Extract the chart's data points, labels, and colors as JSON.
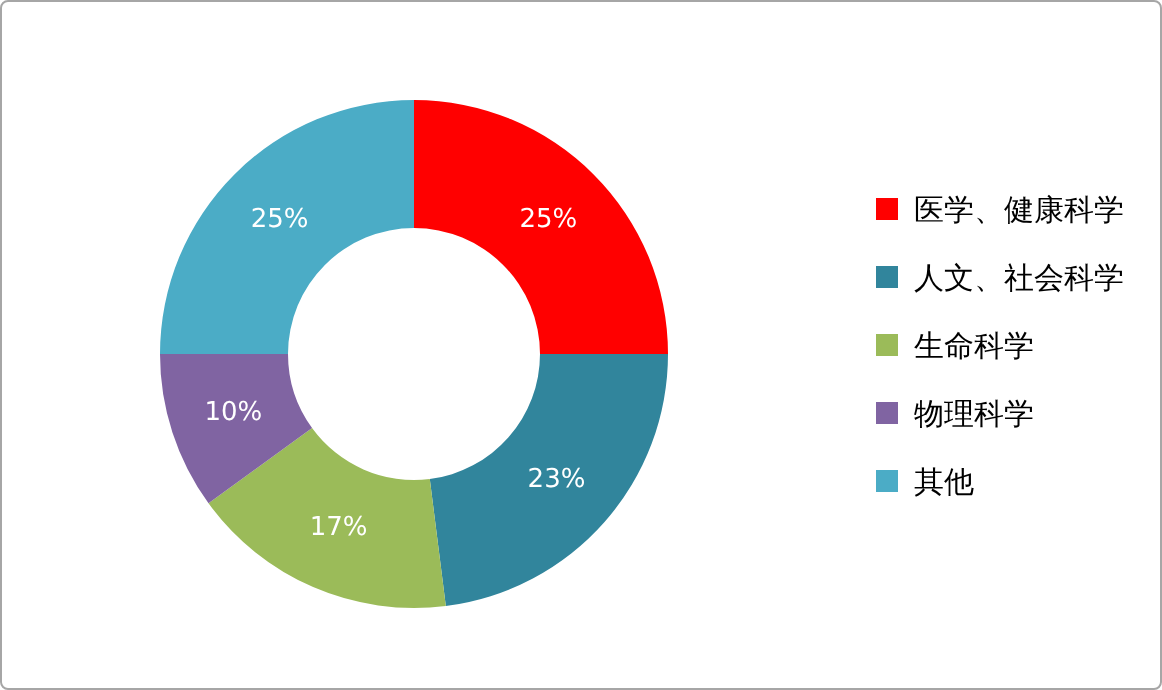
{
  "chart_data": {
    "type": "donut",
    "categories": [
      "医学、健康科学",
      "人文、社会科学",
      "生命科学",
      "物理科学",
      "其他"
    ],
    "values": [
      25,
      23,
      17,
      10,
      25
    ],
    "value_labels": [
      "25%",
      "23%",
      "17%",
      "10%",
      "25%"
    ],
    "colors": [
      "#ff0000",
      "#31859c",
      "#9bbb59",
      "#8064a2",
      "#4bacc6"
    ],
    "legend": "right"
  }
}
